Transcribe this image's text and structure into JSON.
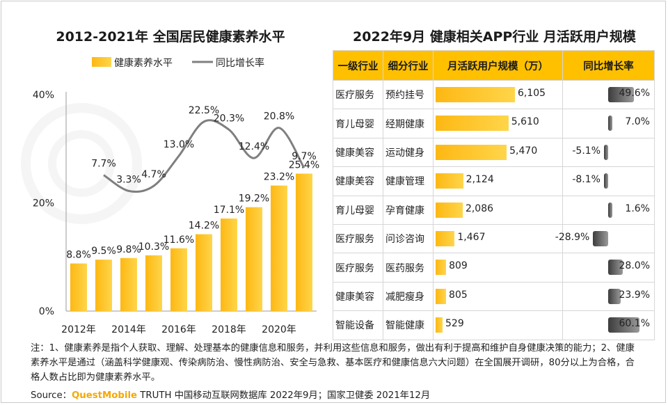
{
  "left_title": "2012-2021年 全国居民健康素养水平",
  "right_title": "2022年9月 健康相关APP行业 月活跃用户规模",
  "chart_data": [
    {
      "type": "bar",
      "title": "2012-2021年 全国居民健康素养水平",
      "categories": [
        "2012",
        "2013",
        "2014",
        "2015",
        "2016",
        "2017",
        "2018",
        "2019",
        "2020",
        "2021"
      ],
      "x_tick_labels": [
        "2012年",
        "2014年",
        "2016年",
        "2018年",
        "2020年"
      ],
      "series": [
        {
          "name": "健康素养水平",
          "type": "bar",
          "values": [
            8.8,
            9.5,
            9.8,
            10.3,
            11.6,
            14.2,
            17.1,
            19.2,
            23.2,
            25.4
          ],
          "labels": [
            "8.8%",
            "9.5%",
            "9.8%",
            "10.3%",
            "11.6%",
            "14.2%",
            "17.1%",
            "19.2%",
            "23.2%",
            "25.4%"
          ]
        },
        {
          "name": "同比增长率",
          "type": "line",
          "values": [
            null,
            7.7,
            3.3,
            4.7,
            13.0,
            22.5,
            20.3,
            12.4,
            20.8,
            9.7
          ],
          "labels": [
            "",
            "7.7%",
            "3.3%",
            "4.7%",
            "13.0%",
            "22.5%",
            "20.3%",
            "12.4%",
            "20.8%",
            "9.7%"
          ]
        }
      ],
      "y_ticks": [
        "0%",
        "20%",
        "40%"
      ],
      "ylim": [
        0,
        40
      ],
      "line_ylim": [
        -30,
        30
      ],
      "legend_position": "top",
      "colors": {
        "bar": "#fdb813",
        "line": "#7f7f7f"
      }
    },
    {
      "type": "table",
      "title": "2022年9月 健康相关APP行业 月活跃用户规模",
      "columns": [
        "一级行业",
        "细分行业",
        "月活跃用户规模（万）",
        "同比增长率"
      ],
      "rows": [
        {
          "industry": "医疗服务",
          "sub": "预约挂号",
          "mau": 6105,
          "mau_label": "6,105",
          "growth": 49.6,
          "growth_label": "49.6%"
        },
        {
          "industry": "育儿母婴",
          "sub": "经期健康",
          "mau": 5610,
          "mau_label": "5,610",
          "growth": 7.0,
          "growth_label": "7.0%"
        },
        {
          "industry": "健康美容",
          "sub": "运动健身",
          "mau": 5470,
          "mau_label": "5,470",
          "growth": -5.1,
          "growth_label": "-5.1%"
        },
        {
          "industry": "健康美容",
          "sub": "健康管理",
          "mau": 2124,
          "mau_label": "2,124",
          "growth": -8.1,
          "growth_label": "-8.1%"
        },
        {
          "industry": "育儿母婴",
          "sub": "孕育健康",
          "mau": 2086,
          "mau_label": "2,086",
          "growth": 1.6,
          "growth_label": "1.6%"
        },
        {
          "industry": "医疗服务",
          "sub": "问诊咨询",
          "mau": 1467,
          "mau_label": "1,467",
          "growth": -28.9,
          "growth_label": "-28.9%"
        },
        {
          "industry": "医疗服务",
          "sub": "医药服务",
          "mau": 809,
          "mau_label": "809",
          "growth": 28.0,
          "growth_label": "28.0%"
        },
        {
          "industry": "健康美容",
          "sub": "减肥瘦身",
          "mau": 805,
          "mau_label": "805",
          "growth": 23.9,
          "growth_label": "23.9%"
        },
        {
          "industry": "智能设备",
          "sub": "智能健康",
          "mau": 529,
          "mau_label": "529",
          "growth": 60.1,
          "growth_label": "60.1%"
        }
      ],
      "colors": {
        "header": "#ffc000",
        "mau_bar": "#fdb813",
        "growth_bar": "#6e6e6e"
      }
    }
  ],
  "note": "注：1、健康素养是指个人获取、理解、处理基本的健康信息和服务，并利用这些信息和服务，做出有利于提高和维护自身健康决策的能力；2、健康素养水平是通过（涵盖科学健康观、传染病防治、慢性病防治、安全与急救、基本医疗和健康信息六大问题）在全国展开调研，80分以上为合格，合格人数占比即为健康素养水平。",
  "source": {
    "prefix": "Source：",
    "brand": "QuestMobile",
    "rest": " TRUTH 中国移动互联网数据库 2022年9月；国家卫健委 2021年12月"
  }
}
